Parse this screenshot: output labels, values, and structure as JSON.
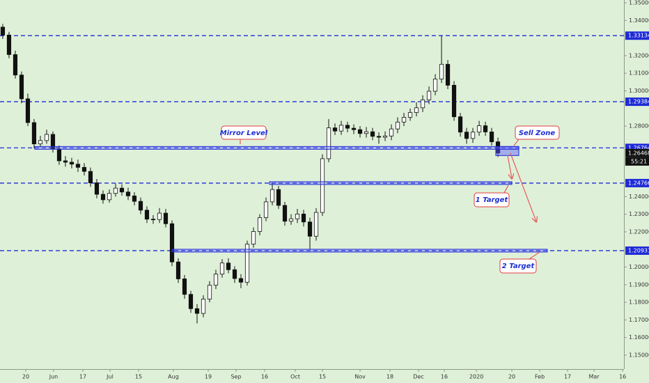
{
  "chart_data": {
    "type": "candlestick",
    "up_color": "#ffffff",
    "down_color": "#111111",
    "wick_color": "#111111",
    "level_color": "#1e2bd6",
    "open": [
      1.3362,
      1.3317,
      1.3206,
      1.309,
      1.2955,
      1.282,
      1.2699,
      1.2718,
      1.2753,
      1.267,
      1.2603,
      1.2595,
      1.2584,
      1.2566,
      1.2543,
      1.2478,
      1.2413,
      1.2382,
      1.2418,
      1.2448,
      1.2426,
      1.2404,
      1.2373,
      1.2323,
      1.2272,
      1.227,
      1.2306,
      1.2246,
      1.2029,
      1.1933,
      1.1845,
      1.1764,
      1.1737,
      1.1818,
      1.1897,
      1.196,
      1.2023,
      1.1985,
      1.1935,
      1.1914,
      1.213,
      1.2202,
      1.228,
      1.237,
      1.244,
      1.235,
      1.226,
      1.2274,
      1.2301,
      1.2256,
      1.2175,
      1.231,
      1.2615,
      1.279,
      1.2772,
      1.2805,
      1.2788,
      1.278,
      1.2758,
      1.2768,
      1.2742,
      1.2737,
      1.2744,
      1.2784,
      1.2823,
      1.285,
      1.2877,
      1.2904,
      1.2949,
      1.2998,
      1.3067,
      1.3151,
      1.3032,
      1.2853,
      1.2766,
      1.273,
      1.2766,
      1.2802,
      1.2767,
      1.2711
    ],
    "high": [
      1.338,
      1.3335,
      1.3228,
      1.311,
      1.2985,
      1.284,
      1.2745,
      1.278,
      1.277,
      1.269,
      1.263,
      1.262,
      1.261,
      1.259,
      1.2565,
      1.25,
      1.2435,
      1.244,
      1.2475,
      1.247,
      1.245,
      1.2425,
      1.2395,
      1.2345,
      1.2295,
      1.2335,
      1.233,
      1.2265,
      1.205,
      1.1955,
      1.1865,
      1.179,
      1.184,
      1.192,
      1.1985,
      1.2045,
      1.205,
      1.2005,
      1.196,
      1.215,
      1.2225,
      1.23,
      1.2395,
      1.2475,
      1.246,
      1.237,
      1.23,
      1.233,
      1.2325,
      1.228,
      1.2335,
      1.264,
      1.284,
      1.2815,
      1.283,
      1.2825,
      1.281,
      1.28,
      1.2795,
      1.279,
      1.2765,
      1.277,
      1.281,
      1.285,
      1.2875,
      1.29,
      1.2935,
      1.2975,
      1.3025,
      1.3095,
      1.3313,
      1.3175,
      1.3055,
      1.2875,
      1.279,
      1.279,
      1.283,
      1.2825,
      1.279,
      1.2735
    ],
    "low": [
      1.3295,
      1.3185,
      1.307,
      1.293,
      1.28,
      1.2675,
      1.268,
      1.27,
      1.265,
      1.258,
      1.257,
      1.256,
      1.254,
      1.252,
      1.2455,
      1.239,
      1.236,
      1.2365,
      1.24,
      1.2405,
      1.238,
      1.235,
      1.23,
      1.225,
      1.2245,
      1.225,
      1.2225,
      1.2005,
      1.191,
      1.182,
      1.174,
      1.168,
      1.1715,
      1.18,
      1.1875,
      1.194,
      1.1965,
      1.191,
      1.188,
      1.1895,
      1.211,
      1.218,
      1.226,
      1.235,
      1.233,
      1.2235,
      1.224,
      1.225,
      1.223,
      1.21,
      1.215,
      1.229,
      1.2595,
      1.275,
      1.275,
      1.2765,
      1.2755,
      1.2735,
      1.2735,
      1.272,
      1.27,
      1.2715,
      1.272,
      1.276,
      1.28,
      1.283,
      1.2855,
      1.288,
      1.2925,
      1.2975,
      1.3045,
      1.301,
      1.283,
      1.274,
      1.27,
      1.2705,
      1.2745,
      1.2745,
      1.269,
      1.2625
    ],
    "close": [
      1.3317,
      1.3206,
      1.309,
      1.2955,
      1.282,
      1.2699,
      1.2718,
      1.2753,
      1.267,
      1.2603,
      1.2595,
      1.2584,
      1.2566,
      1.2543,
      1.2478,
      1.2413,
      1.2382,
      1.2418,
      1.2448,
      1.2426,
      1.2404,
      1.2373,
      1.2323,
      1.2272,
      1.227,
      1.2306,
      1.2246,
      1.2029,
      1.1933,
      1.1845,
      1.1764,
      1.1737,
      1.1818,
      1.1897,
      1.196,
      1.2023,
      1.1985,
      1.1935,
      1.1914,
      1.213,
      1.2202,
      1.228,
      1.237,
      1.244,
      1.235,
      1.226,
      1.2274,
      1.2301,
      1.2256,
      1.2175,
      1.231,
      1.2615,
      1.279,
      1.2772,
      1.2805,
      1.2788,
      1.278,
      1.2758,
      1.2768,
      1.2742,
      1.2737,
      1.2744,
      1.2784,
      1.2823,
      1.285,
      1.2877,
      1.2904,
      1.2949,
      1.2998,
      1.3067,
      1.3151,
      1.3032,
      1.2853,
      1.2766,
      1.273,
      1.2766,
      1.2802,
      1.2767,
      1.2711,
      1.2647
    ],
    "xlim": [
      -0.44,
      99.1
    ],
    "xticks": [
      {
        "value": 3.67,
        "label": "20"
      },
      {
        "value": 8.11,
        "label": "Jun"
      },
      {
        "value": 12.78,
        "label": "17"
      },
      {
        "value": 17.11,
        "label": "Jul"
      },
      {
        "value": 21.67,
        "label": "15"
      },
      {
        "value": 27.22,
        "label": "Aug"
      },
      {
        "value": 32.78,
        "label": "19"
      },
      {
        "value": 37.22,
        "label": "Sep"
      },
      {
        "value": 41.78,
        "label": "16"
      },
      {
        "value": 46.67,
        "label": "Oct"
      },
      {
        "value": 51,
        "label": "15"
      },
      {
        "value": 57,
        "label": "Nov"
      },
      {
        "value": 61.78,
        "label": "18"
      },
      {
        "value": 66.33,
        "label": "Dec"
      },
      {
        "value": 70.44,
        "label": "16"
      },
      {
        "value": 75.56,
        "label": "2020"
      },
      {
        "value": 81.22,
        "label": "20"
      },
      {
        "value": 85.67,
        "label": "Feb"
      },
      {
        "value": 90.11,
        "label": "17"
      },
      {
        "value": 94.33,
        "label": "Mar"
      },
      {
        "value": 98.9,
        "label": "16"
      }
    ],
    "ylim": [
      1.1421,
      1.35158
    ],
    "yticks": [
      {
        "value": 1.35,
        "label": "1.35000"
      },
      {
        "value": 1.34,
        "label": "1.34000"
      },
      {
        "value": 1.32,
        "label": "1.32000"
      },
      {
        "value": 1.31,
        "label": "1.31000"
      },
      {
        "value": 1.3,
        "label": "1.30000"
      },
      {
        "value": 1.28,
        "label": "1.28000"
      },
      {
        "value": 1.24,
        "label": "1.24000"
      },
      {
        "value": 1.23,
        "label": "1.23000"
      },
      {
        "value": 1.22,
        "label": "1.22000"
      },
      {
        "value": 1.2,
        "label": "1.20000"
      },
      {
        "value": 1.19,
        "label": "1.19000"
      },
      {
        "value": 1.18,
        "label": "1.18000"
      },
      {
        "value": 1.17,
        "label": "1.17000"
      },
      {
        "value": 1.16,
        "label": "1.16000"
      },
      {
        "value": 1.15,
        "label": "1.15000"
      }
    ],
    "levels": [
      1.33134,
      1.29384,
      1.26764,
      1.24766,
      1.20931
    ],
    "last_price": 1.26468,
    "countdown": "55:21",
    "annotations": [
      "Mirror Level",
      "Sell Zone",
      "1 Target",
      "2 Target"
    ]
  }
}
